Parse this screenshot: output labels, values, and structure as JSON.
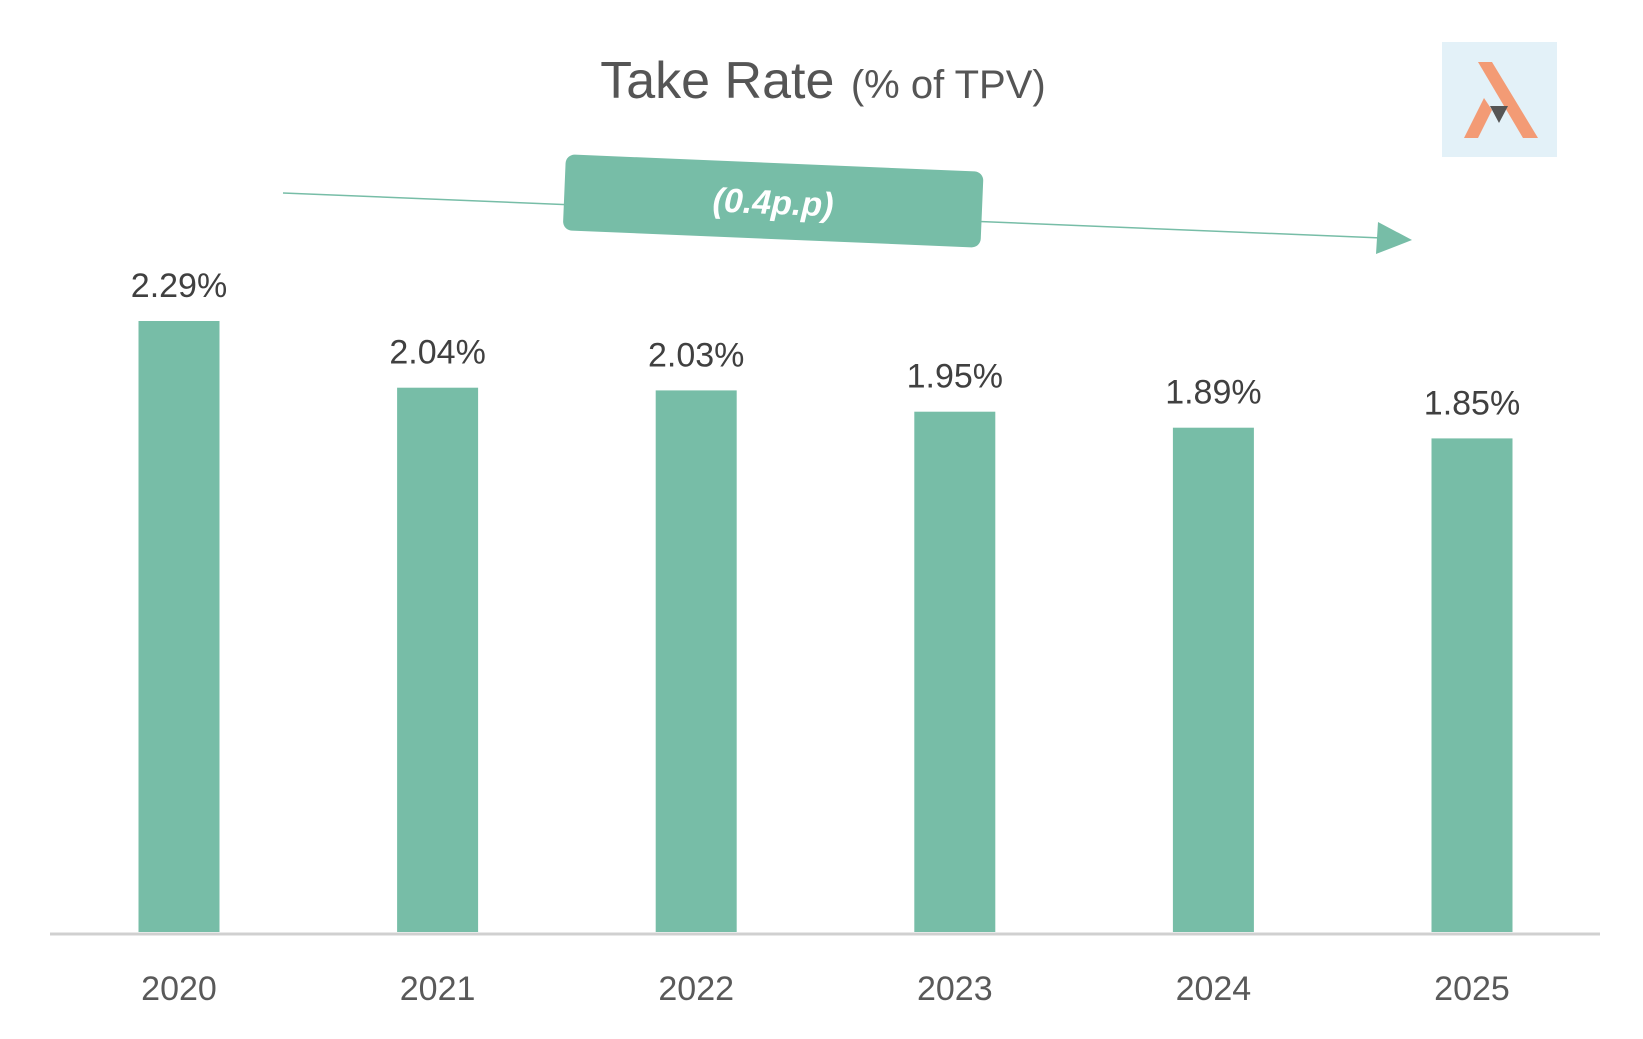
{
  "chart_data": {
    "type": "bar",
    "title": "Take Rate",
    "subtitle": "(% of TPV)",
    "categories": [
      "2020",
      "2021",
      "2022",
      "2023",
      "2024",
      "2025"
    ],
    "values": [
      2.29,
      2.04,
      2.03,
      1.95,
      1.89,
      1.85
    ],
    "value_labels": [
      "2.29%",
      "2.04%",
      "2.03%",
      "1.95%",
      "1.89%",
      "1.85%"
    ],
    "xlabel": "",
    "ylabel": "",
    "ylim": [
      0,
      2.29
    ],
    "grid": false,
    "legend": "none",
    "annotation": {
      "text": "(0.4p.p)",
      "direction": "down-right"
    },
    "colors": {
      "bar": "#77bda7",
      "label": "#404040",
      "axis": "#d0d0d0",
      "title": "#555555",
      "logo_bg": "#e3f1f8",
      "logo_a": "#f39b75",
      "logo_triangle": "#555555"
    }
  },
  "logo": {
    "icon": "brand-logo-icon"
  }
}
